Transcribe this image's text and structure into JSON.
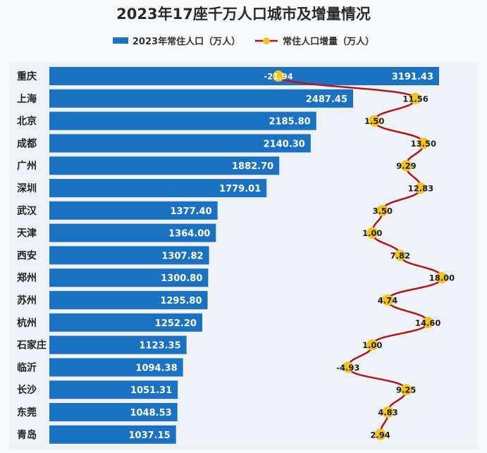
{
  "chart_data": {
    "type": "bar",
    "title": "2023年17座千万人口城市及增量情况",
    "categories": [
      "重庆",
      "上海",
      "北京",
      "成都",
      "广州",
      "深圳",
      "武汉",
      "天津",
      "西安",
      "郑州",
      "苏州",
      "杭州",
      "石家庄",
      "临沂",
      "长沙",
      "东莞",
      "青岛"
    ],
    "series": [
      {
        "name": "2023年常住人口（万人）",
        "type": "bar",
        "color": "#1b72c2",
        "values": [
          3191.43,
          2487.45,
          2185.8,
          2140.3,
          1882.7,
          1779.01,
          1377.4,
          1364.0,
          1307.82,
          1300.8,
          1295.8,
          1252.2,
          1123.35,
          1094.38,
          1051.31,
          1048.53,
          1037.15
        ],
        "labels": [
          "3191.43",
          "2487.45",
          "2185.80",
          "2140.30",
          "1882.70",
          "1779.01",
          "1377.40",
          "1364.00",
          "1307.82",
          "1300.80",
          "1295.80",
          "1252.20",
          "1123.35",
          "1094.38",
          "1051.31",
          "1048.53",
          "1037.15"
        ]
      },
      {
        "name": "常住人口增量（万人）",
        "type": "line",
        "color": "#b3151b",
        "marker_color": "#f2c31c",
        "values": [
          -21.94,
          11.56,
          1.5,
          13.5,
          9.29,
          12.83,
          3.5,
          1.0,
          7.82,
          18.0,
          4.74,
          14.6,
          1.0,
          -4.93,
          9.25,
          4.83,
          2.94
        ],
        "labels": [
          "-21.94",
          "11.56",
          "1.50",
          "13.50",
          "9.29",
          "12.83",
          "3.50",
          "1.00",
          "7.82",
          "18.00",
          "4.74",
          "14.60",
          "1.00",
          "-4.93",
          "9.25",
          "4.83",
          "2.94"
        ]
      }
    ],
    "grid": false,
    "legend_position": "top-center"
  }
}
